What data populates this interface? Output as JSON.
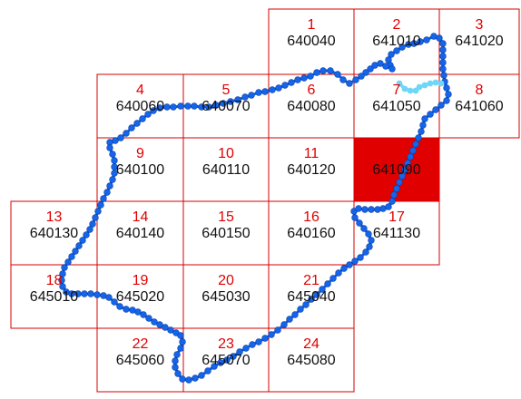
{
  "highlight_color": "#e00000",
  "grid_line_color": "#d40000",
  "route_color": "#1565e8",
  "route_alt_color": "#6fd6f7",
  "cells": [
    {
      "number": "1",
      "code": "640040"
    },
    {
      "number": "2",
      "code": "641010"
    },
    {
      "number": "3",
      "code": "641020"
    },
    {
      "number": "4",
      "code": "640060"
    },
    {
      "number": "5",
      "code": "640070"
    },
    {
      "number": "6",
      "code": "640080"
    },
    {
      "number": "7",
      "code": "641050"
    },
    {
      "number": "8",
      "code": "641060"
    },
    {
      "number": "9",
      "code": "640100"
    },
    {
      "number": "10",
      "code": "640110"
    },
    {
      "number": "11",
      "code": "640120"
    },
    {
      "number": "",
      "code": "641090",
      "highlighted": true
    },
    {
      "number": "13",
      "code": "640130"
    },
    {
      "number": "14",
      "code": "640140"
    },
    {
      "number": "15",
      "code": "640150"
    },
    {
      "number": "16",
      "code": "640160"
    },
    {
      "number": "17",
      "code": "641130"
    },
    {
      "number": "18",
      "code": "645010"
    },
    {
      "number": "19",
      "code": "645020"
    },
    {
      "number": "20",
      "code": "645030"
    },
    {
      "number": "21",
      "code": "645040"
    },
    {
      "number": "22",
      "code": "645060"
    },
    {
      "number": "23",
      "code": "645070"
    },
    {
      "number": "24",
      "code": "645080"
    }
  ]
}
